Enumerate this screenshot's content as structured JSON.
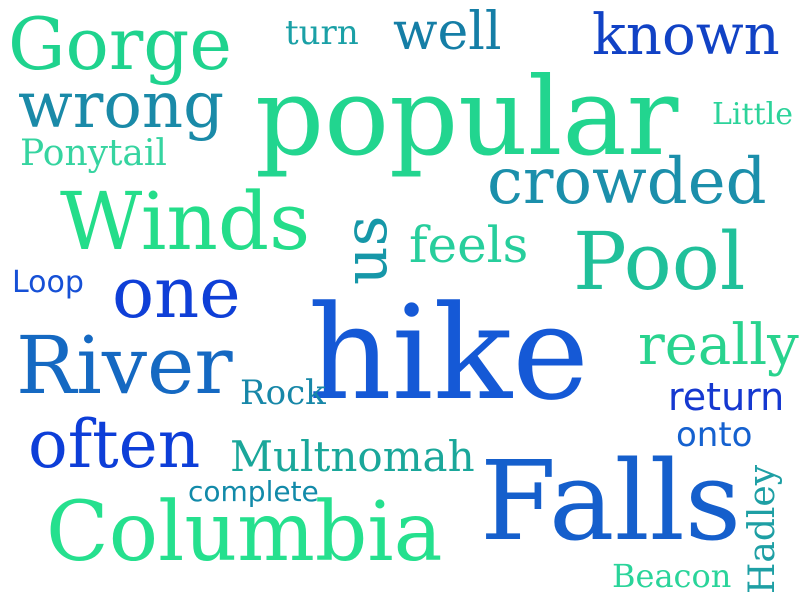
{
  "words": {
    "gorge": {
      "text": "Gorge",
      "color": "#1fd38e"
    },
    "turn": {
      "text": "turn",
      "color": "#1aa0a6"
    },
    "well": {
      "text": "well",
      "color": "#157ea6"
    },
    "known": {
      "text": "known",
      "color": "#1142c5"
    },
    "wrong": {
      "text": "wrong",
      "color": "#1a8aa8"
    },
    "popular": {
      "text": "popular",
      "color": "#22d58f"
    },
    "little": {
      "text": "Little",
      "color": "#2cd39a"
    },
    "ponytail": {
      "text": "Ponytail",
      "color": "#36d4a0"
    },
    "crowded": {
      "text": "crowded",
      "color": "#1b8fab"
    },
    "winds": {
      "text": "Winds",
      "color": "#24dd8a"
    },
    "us": {
      "text": "us",
      "color": "#1697a8"
    },
    "feels": {
      "text": "feels",
      "color": "#27ce9c"
    },
    "pool": {
      "text": "Pool",
      "color": "#20c09a"
    },
    "loop": {
      "text": "Loop",
      "color": "#1650d6"
    },
    "one": {
      "text": "one",
      "color": "#0f3fd7"
    },
    "hike": {
      "text": "hike",
      "color": "#1559d6"
    },
    "really": {
      "text": "really",
      "color": "#29d38e"
    },
    "river": {
      "text": "River",
      "color": "#1569c2"
    },
    "rock": {
      "text": "Rock",
      "color": "#1787a8"
    },
    "return": {
      "text": "return",
      "color": "#1538d0"
    },
    "often": {
      "text": "often",
      "color": "#0d3ed8"
    },
    "onto": {
      "text": "onto",
      "color": "#1561cf"
    },
    "multnomah": {
      "text": "Multnomah",
      "color": "#1aa79a"
    },
    "complete": {
      "text": "complete",
      "color": "#128aa9"
    },
    "falls": {
      "text": "Falls",
      "color": "#155fcc"
    },
    "hadley": {
      "text": "Hadley",
      "color": "#1e9fa4"
    },
    "columbia": {
      "text": "Columbia",
      "color": "#25e08e"
    },
    "beacon": {
      "text": "Beacon",
      "color": "#2ad49a"
    }
  }
}
